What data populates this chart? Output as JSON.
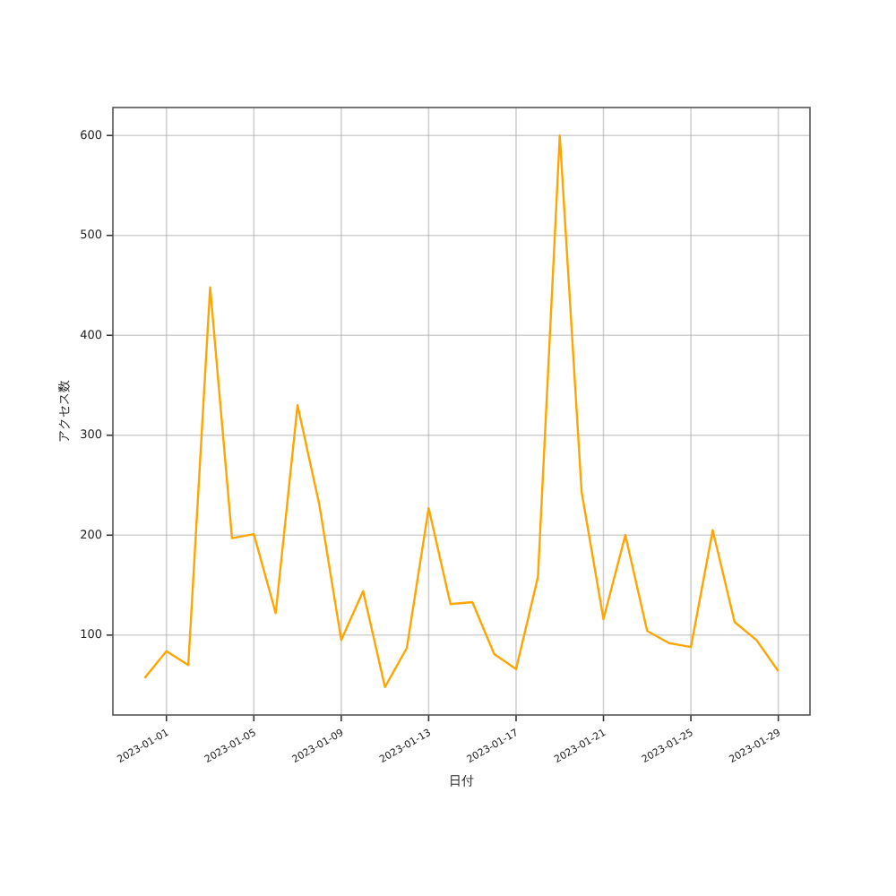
{
  "chart_data": {
    "type": "line",
    "xlabel": "日付",
    "ylabel": "アクセス数",
    "x": [
      "2022-12-31",
      "2023-01-01",
      "2023-01-02",
      "2023-01-03",
      "2023-01-04",
      "2023-01-05",
      "2023-01-06",
      "2023-01-07",
      "2023-01-08",
      "2023-01-09",
      "2023-01-10",
      "2023-01-11",
      "2023-01-12",
      "2023-01-13",
      "2023-01-14",
      "2023-01-15",
      "2023-01-16",
      "2023-01-17",
      "2023-01-18",
      "2023-01-19",
      "2023-01-20",
      "2023-01-21",
      "2023-01-22",
      "2023-01-23",
      "2023-01-24",
      "2023-01-25",
      "2023-01-26",
      "2023-01-27",
      "2023-01-28",
      "2023-01-29"
    ],
    "series": [
      {
        "color": "#ffa500",
        "values": [
          57,
          84,
          70,
          448,
          197,
          201,
          122,
          330,
          230,
          95,
          144,
          48,
          87,
          227,
          131,
          133,
          81,
          66,
          158,
          600,
          243,
          116,
          200,
          104,
          92,
          88,
          205,
          113,
          95,
          64
        ]
      }
    ],
    "xlim": [
      "2022-12-29T13:12",
      "2023-01-30T10:48"
    ],
    "ylim": [
      20,
      628
    ],
    "xticks": [
      "2023-01-01",
      "2023-01-05",
      "2023-01-09",
      "2023-01-13",
      "2023-01-17",
      "2023-01-21",
      "2023-01-25",
      "2023-01-29"
    ],
    "yticks": [
      100,
      200,
      300,
      400,
      500,
      600
    ],
    "grid": true,
    "marker": "none",
    "line_style": "solid"
  }
}
